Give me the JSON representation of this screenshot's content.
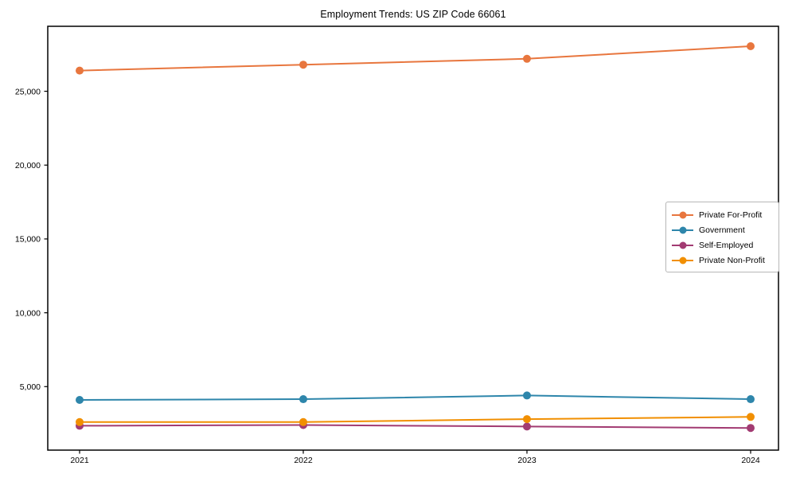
{
  "title": "Employment Trends: US ZIP Code 66061",
  "colors": {
    "axis": "#000000",
    "background": "#ffffff",
    "legend_border": "#b7b7b7",
    "private_for_profit": "#E8763E",
    "government": "#2E86AB",
    "self_employed": "#A23B72",
    "private_non_profit": "#F18F01"
  },
  "chart_data": {
    "type": "line",
    "title": "Employment Trends: US ZIP Code 66061",
    "xlabel": "",
    "ylabel": "",
    "categories": [
      "2021",
      "2022",
      "2023",
      "2024"
    ],
    "x": [
      2021,
      2022,
      2023,
      2024
    ],
    "series": [
      {
        "name": "Private For-Profit",
        "color": "#E8763E",
        "values": [
          26400,
          26800,
          27200,
          28050
        ]
      },
      {
        "name": "Government",
        "color": "#2E86AB",
        "values": [
          4100,
          4150,
          4400,
          4150
        ]
      },
      {
        "name": "Self-Employed",
        "color": "#A23B72",
        "values": [
          2350,
          2400,
          2300,
          2200
        ]
      },
      {
        "name": "Private Non-Profit",
        "color": "#F18F01",
        "values": [
          2600,
          2600,
          2800,
          2950
        ]
      }
    ],
    "ylim": [
      700,
      29400
    ],
    "yticks": [
      5000,
      10000,
      15000,
      20000,
      25000
    ],
    "ytick_labels": [
      "5,000",
      "10,000",
      "15,000",
      "20,000",
      "25,000"
    ],
    "grid": false,
    "marker": "circle",
    "legend_position": "center-right"
  }
}
